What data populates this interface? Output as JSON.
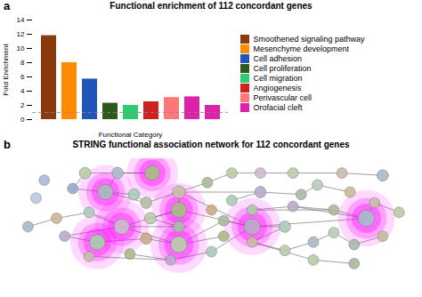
{
  "chart_data": [
    {
      "type": "bar",
      "title": "Functional enrichment of 112 concordant genes",
      "annotations": [
        "a"
      ],
      "xlabel": "Functional Category",
      "ylabel": "Fold Enrichment",
      "categories": [
        null,
        null,
        null,
        null,
        null,
        null,
        null,
        null,
        null
      ],
      "series": [
        {
          "name": "Smoothened signaling pathway",
          "color": "#8B3A10",
          "values": [
            11.8,
            null,
            null,
            null,
            null,
            null,
            null,
            null,
            null
          ]
        },
        {
          "name": "Mesenchyme development",
          "color": "#FF8C00",
          "values": [
            null,
            8.0,
            null,
            null,
            null,
            null,
            null,
            null,
            null
          ]
        },
        {
          "name": "Cell adhesion",
          "color": "#2255BB",
          "values": [
            null,
            null,
            5.7,
            null,
            null,
            null,
            null,
            null,
            null
          ]
        },
        {
          "name": "Cell proliferation",
          "color": "#2D5A1B",
          "values": [
            null,
            null,
            null,
            2.3,
            null,
            null,
            null,
            null,
            null
          ]
        },
        {
          "name": "Cell migration",
          "color": "#2ECC71",
          "values": [
            null,
            null,
            null,
            null,
            2.0,
            null,
            null,
            null,
            null
          ]
        },
        {
          "name": "Angiogenesis",
          "color": "#CC2222",
          "values": [
            null,
            null,
            null,
            null,
            null,
            2.5,
            null,
            null,
            null
          ]
        },
        {
          "name": "Perivascular cell",
          "color": "#FF7777",
          "values": [
            null,
            null,
            null,
            null,
            null,
            null,
            3.1,
            null,
            null
          ]
        },
        {
          "name": "Orofacial cleft",
          "color": "#DD22AA",
          "values": [
            null,
            null,
            null,
            null,
            null,
            null,
            null,
            3.2,
            2.0
          ]
        }
      ],
      "reference_line": 1.0,
      "ylim": [
        0,
        14
      ],
      "yticks": [
        0,
        2,
        4,
        6,
        8,
        10,
        12,
        14
      ],
      "tick_labels": "y",
      "legend": "right"
    },
    {
      "type": "network",
      "title": "STRING functional association network for 112 concordant genes",
      "annotations": [
        "b"
      ],
      "xlim": [
        0,
        1
      ],
      "ylim": [
        0,
        1
      ],
      "tick_labels": false,
      "nodes": [
        {
          "x": 0.355,
          "y": 0.88,
          "color": "#AABB88",
          "highlight": true,
          "r": 0.018
        },
        {
          "x": 0.19,
          "y": 0.88,
          "color": "#BBCCAA",
          "highlight": false,
          "r": 0.014
        },
        {
          "x": 0.27,
          "y": 0.88,
          "color": "#AABBCC",
          "highlight": false,
          "r": 0.014
        },
        {
          "x": 0.09,
          "y": 0.82,
          "color": "#AABBDD",
          "highlight": false,
          "r": 0.013
        },
        {
          "x": 0.16,
          "y": 0.75,
          "color": "#99AACC",
          "highlight": false,
          "r": 0.013
        },
        {
          "x": 0.24,
          "y": 0.72,
          "color": "#AABBBB",
          "highlight": true,
          "r": 0.019
        },
        {
          "x": 0.07,
          "y": 0.67,
          "color": "#BBCCDD",
          "highlight": false,
          "r": 0.013
        },
        {
          "x": 0.31,
          "y": 0.7,
          "color": "#AACCBB",
          "highlight": false,
          "r": 0.014
        },
        {
          "x": 0.34,
          "y": 0.63,
          "color": "#BBBBAA",
          "highlight": false,
          "r": 0.014
        },
        {
          "x": 0.42,
          "y": 0.72,
          "color": "#CCBBAA",
          "highlight": false,
          "r": 0.016
        },
        {
          "x": 0.49,
          "y": 0.8,
          "color": "#AABB99",
          "highlight": false,
          "r": 0.013
        },
        {
          "x": 0.55,
          "y": 0.88,
          "color": "#BBCCAA",
          "highlight": false,
          "r": 0.013
        },
        {
          "x": 0.62,
          "y": 0.88,
          "color": "#CCBBCC",
          "highlight": false,
          "r": 0.013
        },
        {
          "x": 0.7,
          "y": 0.88,
          "color": "#BBCCAA",
          "highlight": false,
          "r": 0.013
        },
        {
          "x": 0.82,
          "y": 0.88,
          "color": "#CCBBAA",
          "highlight": false,
          "r": 0.013
        },
        {
          "x": 0.92,
          "y": 0.86,
          "color": "#AABBCC",
          "highlight": false,
          "r": 0.014
        },
        {
          "x": 0.76,
          "y": 0.78,
          "color": "#BBCCBB",
          "highlight": false,
          "r": 0.013
        },
        {
          "x": 0.84,
          "y": 0.72,
          "color": "#CCBB99",
          "highlight": false,
          "r": 0.013
        },
        {
          "x": 0.72,
          "y": 0.7,
          "color": "#AABBAA",
          "highlight": false,
          "r": 0.013
        },
        {
          "x": 0.62,
          "y": 0.72,
          "color": "#BBAACC",
          "highlight": false,
          "r": 0.014
        },
        {
          "x": 0.55,
          "y": 0.65,
          "color": "#AACCBB",
          "highlight": false,
          "r": 0.013
        },
        {
          "x": 0.9,
          "y": 0.63,
          "color": "#CCBBAA",
          "highlight": false,
          "r": 0.013
        },
        {
          "x": 0.96,
          "y": 0.55,
          "color": "#BBCCAA",
          "highlight": false,
          "r": 0.013
        },
        {
          "x": 0.88,
          "y": 0.5,
          "color": "#AABBCC",
          "highlight": true,
          "r": 0.02
        },
        {
          "x": 0.8,
          "y": 0.57,
          "color": "#AABB99",
          "highlight": false,
          "r": 0.013
        },
        {
          "x": 0.7,
          "y": 0.6,
          "color": "#BBAACC",
          "highlight": false,
          "r": 0.013
        },
        {
          "x": 0.6,
          "y": 0.57,
          "color": "#AACCAA",
          "highlight": false,
          "r": 0.013
        },
        {
          "x": 0.5,
          "y": 0.57,
          "color": "#CCAA88",
          "highlight": false,
          "r": 0.013
        },
        {
          "x": 0.42,
          "y": 0.57,
          "color": "#AABB88",
          "highlight": true,
          "r": 0.019
        },
        {
          "x": 0.35,
          "y": 0.5,
          "color": "#BBCCAA",
          "highlight": false,
          "r": 0.014
        },
        {
          "x": 0.42,
          "y": 0.43,
          "color": "#AABBAA",
          "highlight": false,
          "r": 0.014
        },
        {
          "x": 0.28,
          "y": 0.43,
          "color": "#CCBBCC",
          "highlight": true,
          "r": 0.019
        },
        {
          "x": 0.2,
          "y": 0.55,
          "color": "#AACCBB",
          "highlight": false,
          "r": 0.013
        },
        {
          "x": 0.12,
          "y": 0.5,
          "color": "#CCBB99",
          "highlight": false,
          "r": 0.013
        },
        {
          "x": 0.05,
          "y": 0.43,
          "color": "#AABBCC",
          "highlight": false,
          "r": 0.013
        },
        {
          "x": 0.14,
          "y": 0.35,
          "color": "#BBAACC",
          "highlight": false,
          "r": 0.013
        },
        {
          "x": 0.22,
          "y": 0.3,
          "color": "#AACCAA",
          "highlight": true,
          "r": 0.019
        },
        {
          "x": 0.34,
          "y": 0.33,
          "color": "#CCAA88",
          "highlight": false,
          "r": 0.014
        },
        {
          "x": 0.42,
          "y": 0.28,
          "color": "#BBCCAA",
          "highlight": true,
          "r": 0.02
        },
        {
          "x": 0.53,
          "y": 0.35,
          "color": "#AABB88",
          "highlight": false,
          "r": 0.013
        },
        {
          "x": 0.53,
          "y": 0.48,
          "color": "#AABB99",
          "highlight": false,
          "r": 0.013
        },
        {
          "x": 0.6,
          "y": 0.43,
          "color": "#BBAACC",
          "highlight": true,
          "r": 0.02
        },
        {
          "x": 0.68,
          "y": 0.43,
          "color": "#AACCBB",
          "highlight": false,
          "r": 0.014
        },
        {
          "x": 0.6,
          "y": 0.3,
          "color": "#CCBBAA",
          "highlight": false,
          "r": 0.013
        },
        {
          "x": 0.68,
          "y": 0.23,
          "color": "#BBCCAA",
          "highlight": false,
          "r": 0.013
        },
        {
          "x": 0.75,
          "y": 0.3,
          "color": "#AABBCC",
          "highlight": false,
          "r": 0.013
        },
        {
          "x": 0.8,
          "y": 0.38,
          "color": "#BBCCBB",
          "highlight": false,
          "r": 0.013
        },
        {
          "x": 0.85,
          "y": 0.28,
          "color": "#AABBAA",
          "highlight": false,
          "r": 0.013
        },
        {
          "x": 0.92,
          "y": 0.35,
          "color": "#CCBB99",
          "highlight": false,
          "r": 0.013
        },
        {
          "x": 0.5,
          "y": 0.22,
          "color": "#AACCBB",
          "highlight": false,
          "r": 0.013
        },
        {
          "x": 0.4,
          "y": 0.15,
          "color": "#BBAACC",
          "highlight": false,
          "r": 0.013
        },
        {
          "x": 0.3,
          "y": 0.2,
          "color": "#AABB88",
          "highlight": false,
          "r": 0.013
        },
        {
          "x": 0.2,
          "y": 0.18,
          "color": "#CCBBAA",
          "highlight": false,
          "r": 0.013
        },
        {
          "x": 0.75,
          "y": 0.15,
          "color": "#BBCCAA",
          "highlight": false,
          "r": 0.013
        },
        {
          "x": 0.85,
          "y": 0.12,
          "color": "#AABB99",
          "highlight": false,
          "r": 0.013
        }
      ],
      "edges": [
        [
          0,
          1
        ],
        [
          0,
          2
        ],
        [
          1,
          4
        ],
        [
          2,
          5
        ],
        [
          4,
          5
        ],
        [
          5,
          7
        ],
        [
          5,
          8
        ],
        [
          7,
          8
        ],
        [
          8,
          9
        ],
        [
          9,
          10
        ],
        [
          10,
          11
        ],
        [
          11,
          12
        ],
        [
          12,
          13
        ],
        [
          13,
          14
        ],
        [
          14,
          15
        ],
        [
          9,
          19
        ],
        [
          18,
          19
        ],
        [
          19,
          20
        ],
        [
          16,
          17
        ],
        [
          16,
          18
        ],
        [
          23,
          24
        ],
        [
          23,
          25
        ],
        [
          24,
          25
        ],
        [
          24,
          26
        ],
        [
          25,
          26
        ],
        [
          23,
          21
        ],
        [
          21,
          22
        ],
        [
          28,
          29
        ],
        [
          28,
          31
        ],
        [
          29,
          30
        ],
        [
          30,
          31
        ],
        [
          31,
          32
        ],
        [
          32,
          33
        ],
        [
          33,
          34
        ],
        [
          31,
          35
        ],
        [
          35,
          36
        ],
        [
          36,
          37
        ],
        [
          37,
          38
        ],
        [
          38,
          39
        ],
        [
          38,
          40
        ],
        [
          40,
          41
        ],
        [
          41,
          42
        ],
        [
          42,
          43
        ],
        [
          43,
          44
        ],
        [
          44,
          45
        ],
        [
          45,
          46
        ],
        [
          46,
          47
        ],
        [
          47,
          48
        ],
        [
          41,
          49
        ],
        [
          49,
          50
        ],
        [
          50,
          51
        ],
        [
          50,
          52
        ],
        [
          38,
          31
        ],
        [
          9,
          28
        ],
        [
          9,
          41
        ],
        [
          28,
          41
        ],
        [
          23,
          41
        ],
        [
          53,
          54
        ],
        [
          43,
          53
        ]
      ]
    }
  ]
}
